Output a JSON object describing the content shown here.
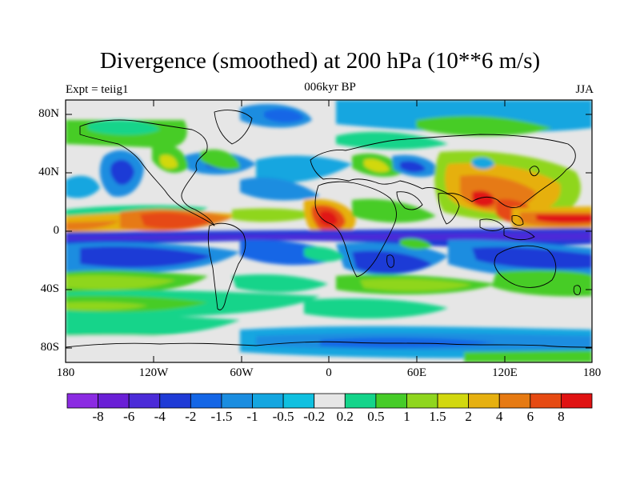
{
  "header": {
    "title": "Divergence (smoothed) at 200 hPa (10**6 m/s)",
    "left": "Expt = teiig1",
    "center": "006kyr BP",
    "right": "JJA"
  },
  "axes": {
    "lat_ticks": [
      "80N",
      "40N",
      "0",
      "40S",
      "80S"
    ],
    "lon_ticks": [
      "180",
      "120W",
      "60W",
      "0",
      "60E",
      "120E",
      "180"
    ]
  },
  "colorbar": {
    "labels": [
      "-8",
      "-6",
      "-4",
      "-2",
      "-1.5",
      "-1",
      "-0.5",
      "-0.2",
      "0.2",
      "0.5",
      "1",
      "1.5",
      "2",
      "4",
      "6",
      "8"
    ],
    "colors": [
      "#8b2be2",
      "#6a1fd6",
      "#4b2bd8",
      "#1f3bd6",
      "#1466e6",
      "#1a8de0",
      "#14a6e0",
      "#10c0e0",
      "#e6e6e6",
      "#14d48a",
      "#46cc28",
      "#8fd61e",
      "#d2d80e",
      "#e6b010",
      "#e67a12",
      "#e64a12",
      "#e01212"
    ]
  },
  "map": {
    "type": "filled-contour",
    "projection": "cylindrical-equidistant",
    "lon_range": [
      -180,
      180
    ],
    "lat_range": [
      -90,
      90
    ]
  }
}
